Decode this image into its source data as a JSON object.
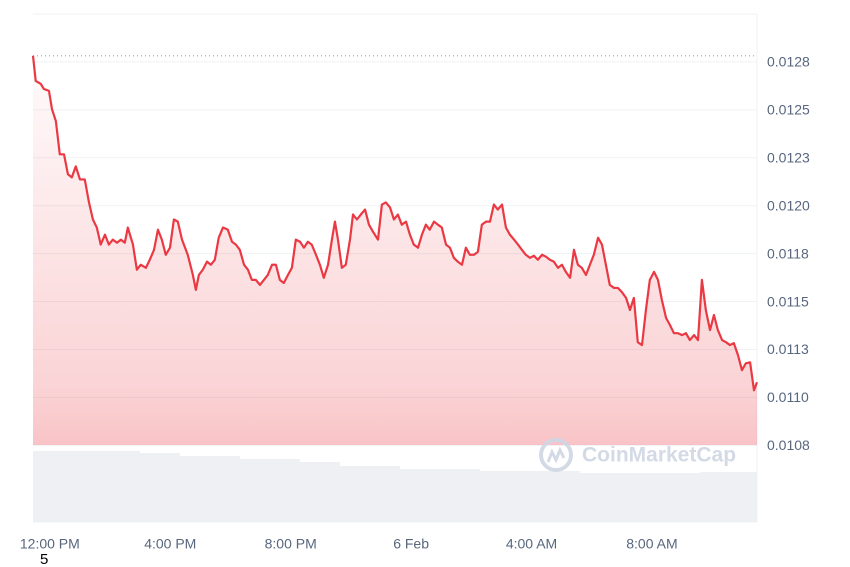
{
  "chart_data": {
    "type": "line",
    "color": "#ea3943",
    "grid": true,
    "watermark": "CoinMarketCap",
    "xlim": [
      -0.56,
      23.49
    ],
    "xticks": [
      {
        "value": 0,
        "label": "12:00 PM"
      },
      {
        "value": 4,
        "label": "4:00 PM"
      },
      {
        "value": 8,
        "label": "8:00 PM"
      },
      {
        "value": 12,
        "label": "6 Feb"
      },
      {
        "value": 16,
        "label": "4:00 AM"
      },
      {
        "value": 20,
        "label": "8:00 AM"
      }
    ],
    "ylim": [
      0.01035,
      0.013
    ],
    "yticks": [
      {
        "value": 0.01075,
        "label": "0.0108"
      },
      {
        "value": 0.011,
        "label": "0.0110"
      },
      {
        "value": 0.01125,
        "label": "0.0113"
      },
      0.0115,
      {
        "value": 0.01175,
        "label": "0.0118"
      },
      {
        "value": 0.012,
        "label": "0.0120"
      },
      {
        "value": 0.01225,
        "label": "0.0123"
      },
      0.0125,
      {
        "value": 0.01275,
        "label": "0.0128"
      }
    ],
    "x": [
      -0.56,
      -0.47,
      -0.3,
      -0.2,
      -0.03,
      0.07,
      0.2,
      0.33,
      0.47,
      0.6,
      0.73,
      0.86,
      1.0,
      1.16,
      1.3,
      1.43,
      1.56,
      1.69,
      1.83,
      1.96,
      2.09,
      2.23,
      2.36,
      2.49,
      2.59,
      2.76,
      2.89,
      3.02,
      3.19,
      3.32,
      3.46,
      3.59,
      3.72,
      3.85,
      3.99,
      4.12,
      4.25,
      4.39,
      4.58,
      4.75,
      4.85,
      4.95,
      5.08,
      5.22,
      5.35,
      5.48,
      5.61,
      5.75,
      5.91,
      6.05,
      6.18,
      6.31,
      6.45,
      6.58,
      6.71,
      6.84,
      6.98,
      7.11,
      7.24,
      7.38,
      7.51,
      7.64,
      7.77,
      7.91,
      8.04,
      8.17,
      8.31,
      8.44,
      8.57,
      8.7,
      8.84,
      8.97,
      9.1,
      9.24,
      9.37,
      9.47,
      9.57,
      9.7,
      9.83,
      9.97,
      10.07,
      10.2,
      10.33,
      10.47,
      10.6,
      10.73,
      10.9,
      11.03,
      11.16,
      11.3,
      11.43,
      11.56,
      11.69,
      11.83,
      11.96,
      12.09,
      12.23,
      12.36,
      12.49,
      12.62,
      12.76,
      12.89,
      13.02,
      13.16,
      13.29,
      13.42,
      13.55,
      13.69,
      13.82,
      13.95,
      14.09,
      14.22,
      14.35,
      14.49,
      14.62,
      14.75,
      14.88,
      15.02,
      15.15,
      15.28,
      15.42,
      15.55,
      15.68,
      15.81,
      15.95,
      16.08,
      16.21,
      16.35,
      16.48,
      16.61,
      16.74,
      16.88,
      17.01,
      17.14,
      17.28,
      17.41,
      17.54,
      17.67,
      17.81,
      17.94,
      18.07,
      18.21,
      18.34,
      18.47,
      18.6,
      18.74,
      18.87,
      19.0,
      19.14,
      19.27,
      19.4,
      19.53,
      19.67,
      19.8,
      19.93,
      20.07,
      20.2,
      20.33,
      20.47,
      20.6,
      20.73,
      20.86,
      21.0,
      21.13,
      21.26,
      21.4,
      21.53,
      21.66,
      21.79,
      21.93,
      22.06,
      22.19,
      22.33,
      22.46,
      22.59,
      22.72,
      22.86,
      22.99,
      23.12,
      23.26,
      23.39,
      23.49
    ],
    "values": [
      0.012782,
      0.012651,
      0.012635,
      0.012609,
      0.012599,
      0.012504,
      0.012441,
      0.012268,
      0.012268,
      0.012164,
      0.012148,
      0.012205,
      0.012137,
      0.012137,
      0.012017,
      0.011928,
      0.011886,
      0.011797,
      0.011849,
      0.011797,
      0.011823,
      0.011807,
      0.011823,
      0.011807,
      0.011886,
      0.011797,
      0.011666,
      0.011692,
      0.011676,
      0.011718,
      0.01177,
      0.011875,
      0.011823,
      0.011744,
      0.011781,
      0.011928,
      0.011917,
      0.011823,
      0.011744,
      0.011639,
      0.011561,
      0.011639,
      0.011666,
      0.011708,
      0.011692,
      0.011718,
      0.011833,
      0.011886,
      0.011875,
      0.011812,
      0.011797,
      0.01177,
      0.011692,
      0.011666,
      0.011613,
      0.011613,
      0.011587,
      0.011613,
      0.011639,
      0.011692,
      0.011692,
      0.011613,
      0.011597,
      0.011639,
      0.011676,
      0.011823,
      0.011812,
      0.011781,
      0.011812,
      0.011797,
      0.011744,
      0.011692,
      0.011624,
      0.011692,
      0.011823,
      0.011917,
      0.011823,
      0.011676,
      0.011692,
      0.011823,
      0.011954,
      0.011928,
      0.011954,
      0.01198,
      0.011901,
      0.011865,
      0.011823,
      0.012006,
      0.012017,
      0.011991,
      0.011928,
      0.011954,
      0.011901,
      0.011917,
      0.011849,
      0.011797,
      0.011781,
      0.011849,
      0.011901,
      0.011875,
      0.011917,
      0.011901,
      0.011886,
      0.011797,
      0.011781,
      0.011728,
      0.011708,
      0.011692,
      0.011781,
      0.011744,
      0.011744,
      0.01176,
      0.011901,
      0.011917,
      0.011917,
      0.012006,
      0.01198,
      0.012006,
      0.011886,
      0.011849,
      0.011823,
      0.011797,
      0.01177,
      0.011744,
      0.011728,
      0.011739,
      0.011718,
      0.011744,
      0.011734,
      0.011718,
      0.011708,
      0.011676,
      0.011692,
      0.011655,
      0.011624,
      0.01177,
      0.011692,
      0.011676,
      0.011639,
      0.011692,
      0.011744,
      0.011833,
      0.011797,
      0.011692,
      0.011587,
      0.011571,
      0.011571,
      0.01155,
      0.011519,
      0.011456,
      0.011519,
      0.011288,
      0.011273,
      0.011456,
      0.011613,
      0.011655,
      0.011613,
      0.011508,
      0.011414,
      0.011377,
      0.011335,
      0.011335,
      0.011325,
      0.011335,
      0.011299,
      0.011325,
      0.011299,
      0.011613,
      0.011456,
      0.011351,
      0.01143,
      0.011351,
      0.011299,
      0.011288,
      0.011273,
      0.011283,
      0.01122,
      0.011142,
      0.011178,
      0.011183,
      0.011037,
      0.011079
    ]
  },
  "corner_text": "5"
}
